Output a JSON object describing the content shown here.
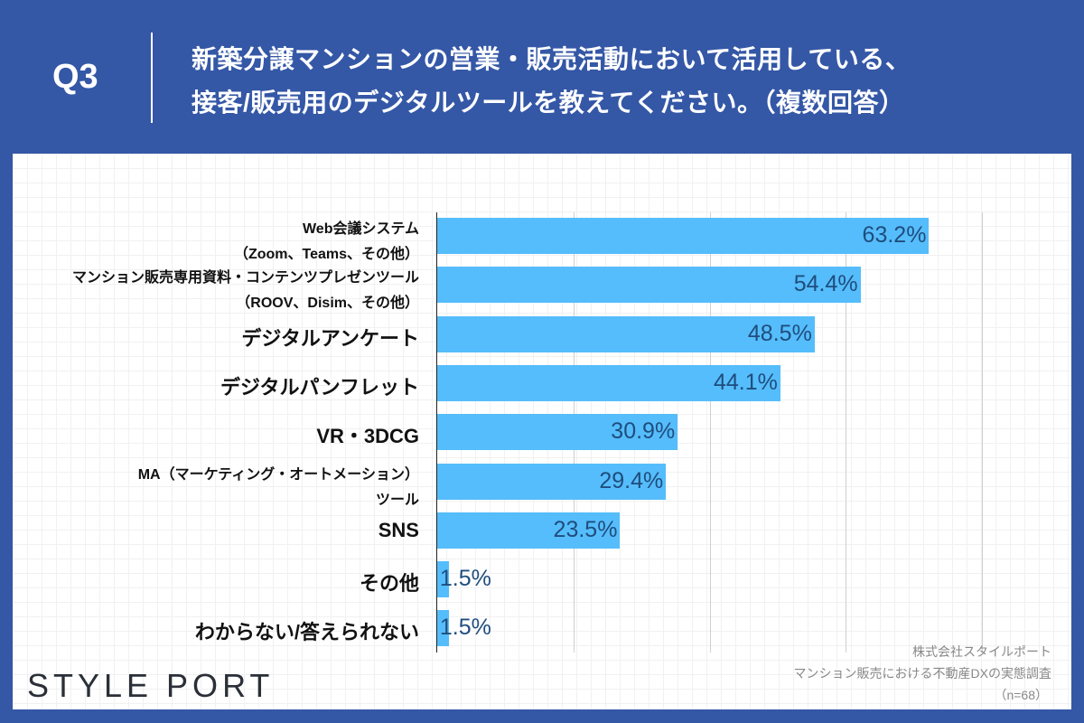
{
  "header": {
    "q": "Q3",
    "title_line1": "新築分譲マンションの営業・販売活動において活用している、",
    "title_line2": "接客/販売用のデジタルツールを教えてください。（複数回答）"
  },
  "chart_data": {
    "type": "bar",
    "orientation": "horizontal",
    "categories": [
      [
        "Web会議システム",
        "（Zoom、Teams、その他）"
      ],
      [
        "マンション販売専用資料・コンテンツプレゼンツール",
        "（ROOV、Disim、その他）"
      ],
      [
        "デジタルアンケート"
      ],
      [
        "デジタルパンフレット"
      ],
      [
        "VR・3DCG"
      ],
      [
        "MA（マーケティング・オートメーション）",
        "ツール"
      ],
      [
        "SNS"
      ],
      [
        "その他"
      ],
      [
        "わからない/答えられない"
      ]
    ],
    "values": [
      63.2,
      54.4,
      48.5,
      44.1,
      30.9,
      29.4,
      23.5,
      1.5,
      1.5
    ],
    "value_labels": [
      "63.2%",
      "54.4%",
      "48.5%",
      "44.1%",
      "30.9%",
      "29.4%",
      "23.5%",
      "1.5%",
      "1.5%"
    ],
    "xlim": [
      0,
      70
    ],
    "grid": true,
    "bar_color": "#55bdfb",
    "label_color": "#1f4d7e"
  },
  "footer": {
    "logo": "STYLE PORT",
    "company": "株式会社スタイルポート",
    "survey": "マンション販売における不動産DXの実態調査",
    "n": "（n=68）"
  }
}
